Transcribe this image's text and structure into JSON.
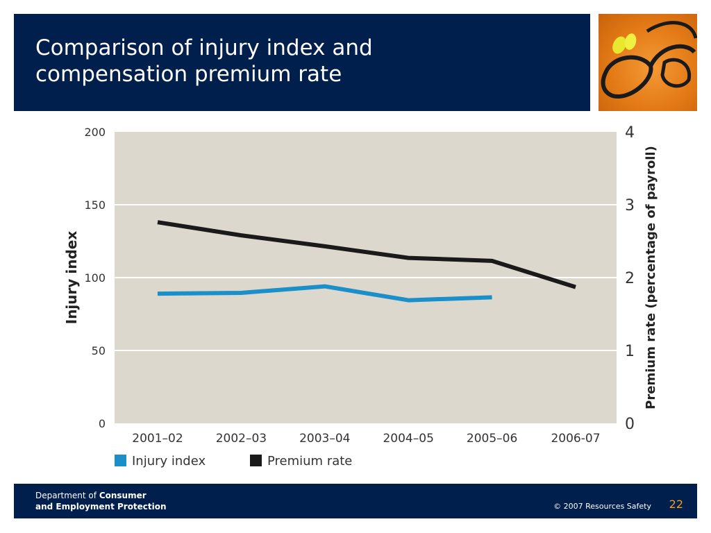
{
  "slide": {
    "title_line1": "Comparison of injury index and",
    "title_line2": "compensation premium rate",
    "page_number": "22"
  },
  "footer": {
    "dept_prefix": "Department of ",
    "dept_bold1": "Consumer",
    "dept_bold2": "and Employment Protection",
    "copyright": "© 2007 Resources Safety"
  },
  "colors": {
    "band": "#001f4d",
    "plot_bg": "#ddd8ce",
    "injury": "#1b8fc9",
    "premium": "#1a1a1a",
    "accent": "#f0a020"
  },
  "chart_data": {
    "type": "line",
    "categories": [
      "2001–02",
      "2002–03",
      "2003–04",
      "2004–05",
      "2005–06",
      "2006-07"
    ],
    "ylabel": "Injury index",
    "y2label": "Premium rate (percentage of payroll)",
    "ylim": [
      0,
      200
    ],
    "y2lim": [
      0,
      4
    ],
    "yticks": [
      "0",
      "50",
      "100",
      "150",
      "200"
    ],
    "y2ticks": [
      "0",
      "1",
      "2",
      "3",
      "4"
    ],
    "grid": true,
    "legend_position": "bottom-left",
    "series": [
      {
        "name": "Injury index",
        "axis": "left",
        "values": [
          89,
          89.5,
          94,
          84.5,
          86.5,
          null
        ]
      },
      {
        "name": "Premium rate",
        "axis": "right",
        "values": [
          2.76,
          2.58,
          2.43,
          2.27,
          2.23,
          1.87
        ]
      }
    ]
  }
}
